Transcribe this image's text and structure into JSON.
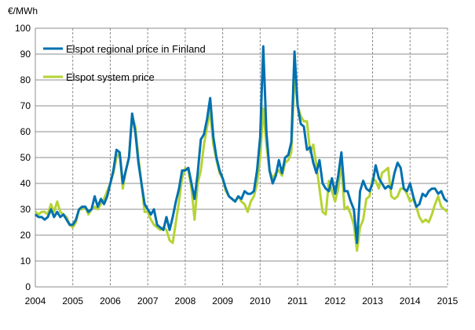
{
  "chart_data": {
    "type": "line",
    "title": "",
    "ylabel": "€/MWh",
    "xlabel": "",
    "ylim": [
      0,
      100
    ],
    "yticks": [
      0,
      10,
      20,
      30,
      40,
      50,
      60,
      70,
      80,
      90,
      100
    ],
    "xticks": [
      "2004",
      "2005",
      "2006",
      "2007",
      "2008",
      "2009",
      "2010",
      "2011",
      "2012",
      "2013",
      "2014",
      "2015"
    ],
    "xlim": [
      "2004-01",
      "2015-01"
    ],
    "x_frequency": "monthly",
    "x_start": "2004-01",
    "grid": {
      "horizontal": "solid",
      "vertical": "dashed"
    },
    "legend_position": "top-left",
    "series": [
      {
        "name": "Elspot regional price in Finland",
        "color": "#0070b0",
        "values": [
          28,
          27,
          27,
          26,
          27,
          30,
          27,
          29,
          27,
          28,
          26,
          24,
          24,
          26,
          30,
          31,
          31,
          29,
          30,
          35,
          31,
          34,
          32,
          35,
          40,
          45,
          53,
          52,
          40,
          45,
          50,
          67,
          60,
          48,
          40,
          32,
          30,
          28,
          30,
          24,
          23,
          22,
          27,
          22,
          27,
          33,
          38,
          45,
          45,
          46,
          40,
          34,
          44,
          57,
          59,
          65,
          73,
          58,
          50,
          45,
          42,
          38,
          35,
          34,
          33,
          35,
          34,
          37,
          36,
          36,
          37,
          45,
          58,
          93,
          60,
          45,
          40,
          43,
          49,
          44,
          50,
          51,
          56,
          91,
          70,
          63,
          62,
          53,
          54,
          48,
          44,
          49,
          40,
          38,
          37,
          42,
          36,
          43,
          52,
          37,
          37,
          33,
          30,
          17,
          37,
          41,
          38,
          37,
          40,
          47,
          42,
          40,
          38,
          39,
          38,
          44,
          48,
          46,
          38,
          37,
          40,
          35,
          31,
          32,
          36,
          35,
          37,
          38,
          38,
          36,
          37,
          34,
          33
        ]
      },
      {
        "name": "Elspot system price",
        "color": "#b5d334",
        "values": [
          29,
          28,
          29,
          29,
          28,
          32,
          29,
          33,
          29,
          28,
          27,
          24,
          23,
          25,
          30,
          30,
          31,
          28,
          30,
          31,
          30,
          32,
          34,
          37,
          40,
          44,
          50,
          52,
          38,
          45,
          50,
          66,
          62,
          50,
          40,
          29,
          29,
          26,
          24,
          23,
          22,
          23,
          22,
          18,
          17,
          25,
          33,
          42,
          46,
          45,
          38,
          26,
          40,
          45,
          55,
          62,
          68,
          55,
          49,
          44,
          42,
          37,
          35,
          34,
          33,
          35,
          33,
          32,
          29,
          33,
          35,
          40,
          50,
          69,
          55,
          45,
          42,
          44,
          45,
          43,
          48,
          49,
          52,
          82,
          70,
          66,
          64,
          64,
          52,
          55,
          47,
          38,
          29,
          28,
          41,
          37,
          33,
          38,
          48,
          30,
          31,
          28,
          24,
          14,
          23,
          26,
          34,
          35,
          42,
          41,
          38,
          44,
          45,
          46,
          35,
          34,
          35,
          38,
          38,
          36,
          33,
          34,
          31,
          27,
          25,
          26,
          25,
          28,
          32,
          35,
          31,
          30,
          29
        ]
      }
    ]
  }
}
